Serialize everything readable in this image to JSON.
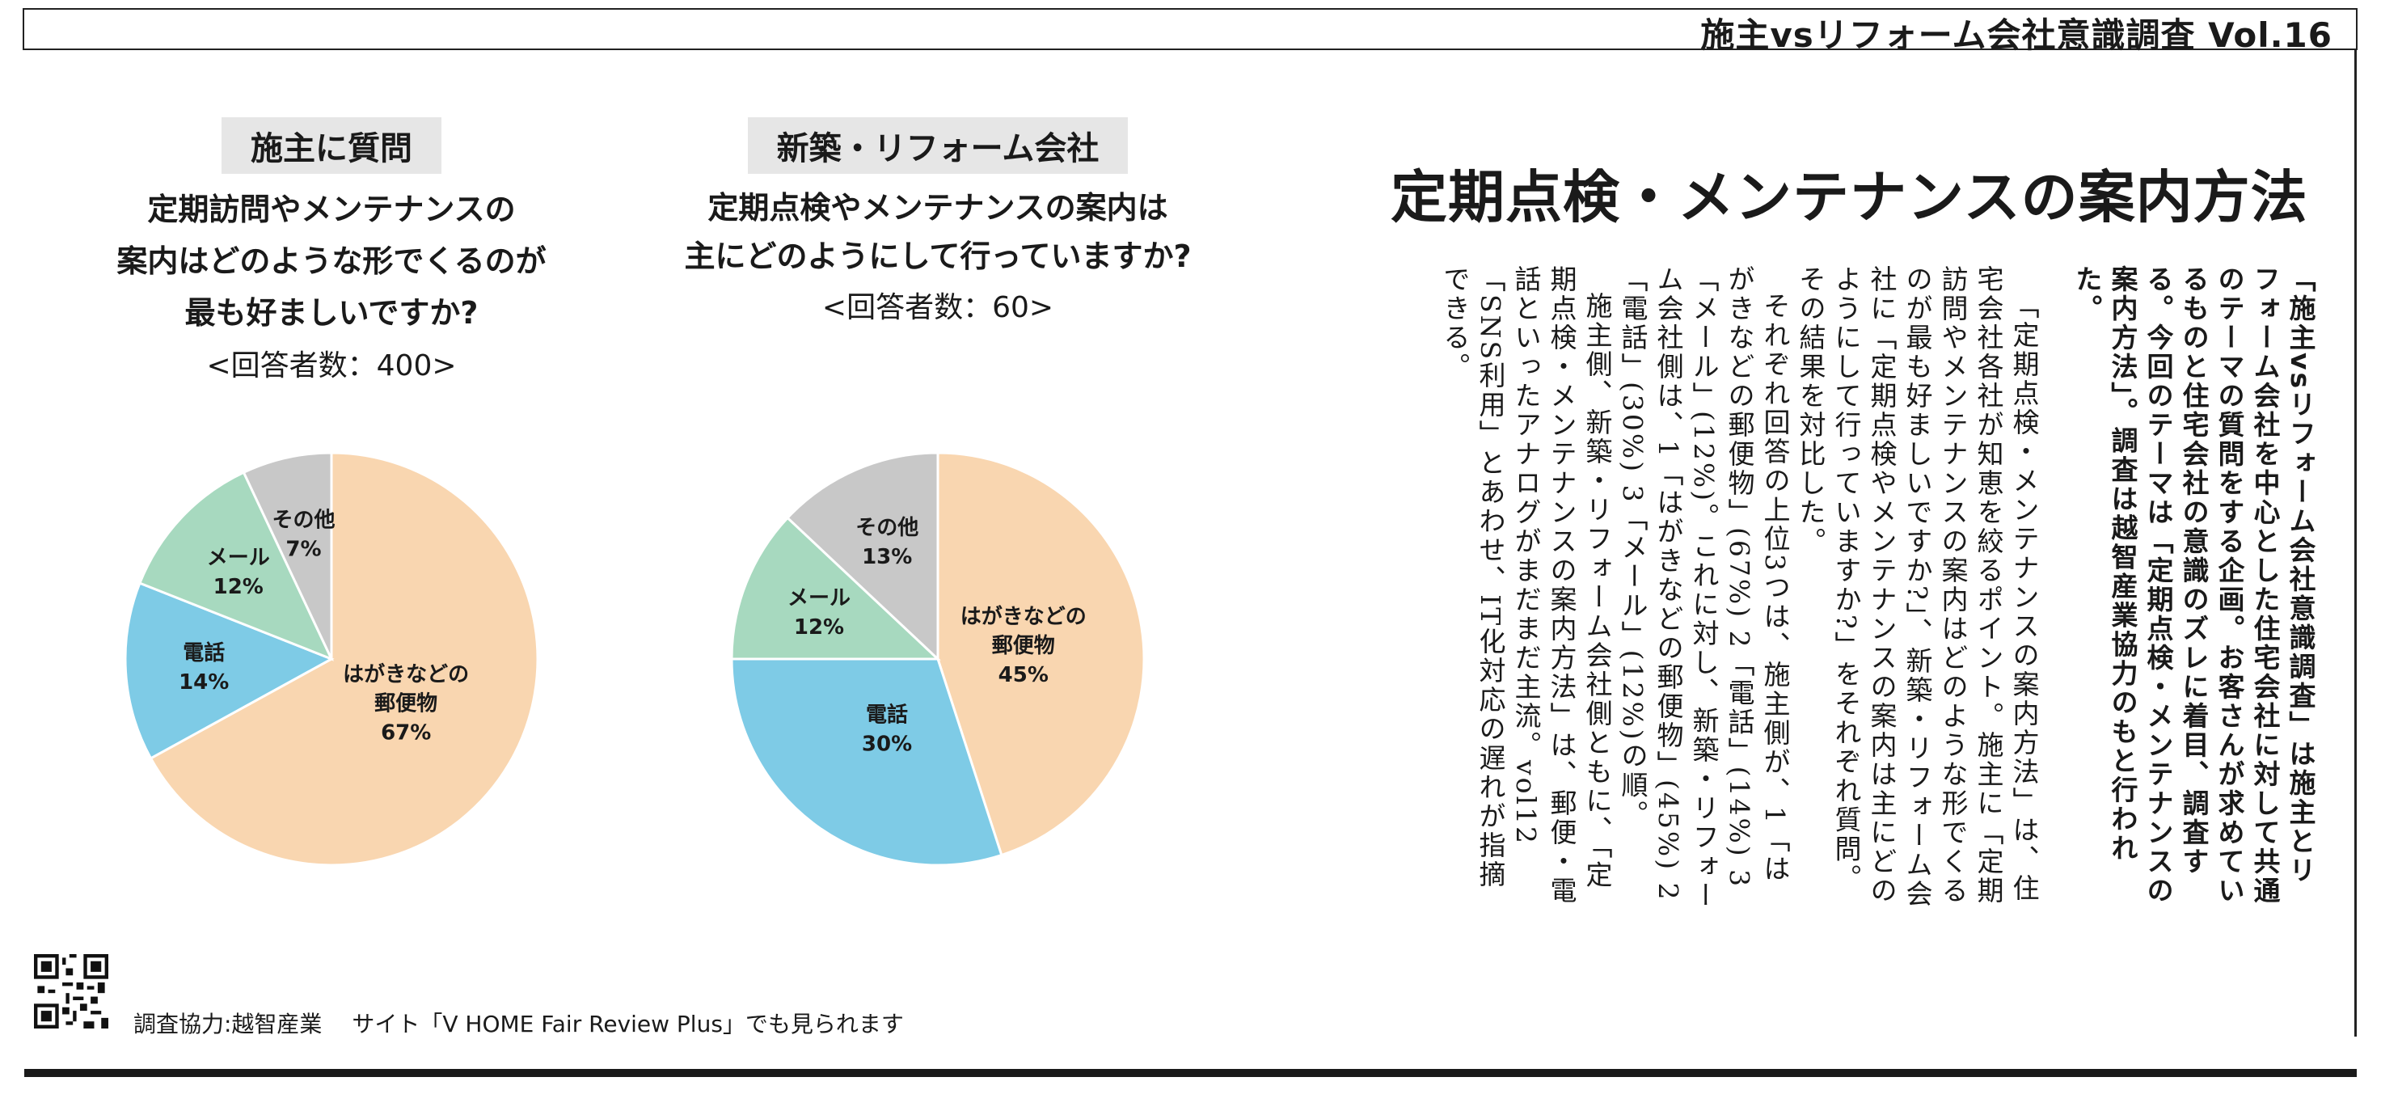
{
  "header": {
    "series_title": "施主vsリフォーム会社意識調査 Vol.16"
  },
  "headline": "定期点検・メンテナンスの案内方法",
  "survey_owner": {
    "tag": "施主に質問",
    "question_lines": [
      "定期訪問やメンテナンスの",
      "案内はどのような形でくるのが",
      "最も好ましいですか?"
    ],
    "respondents": "<回答者数：400>"
  },
  "survey_company": {
    "tag": "新築・リフォーム会社",
    "question_lines": [
      "定期点検やメンテナンスの案内は",
      "主にどのようにして行っていますか?"
    ],
    "respondents": "<回答者数：60>"
  },
  "chart_data": [
    {
      "type": "pie",
      "categories": [
        "はがきなどの郵便物",
        "電話",
        "メール",
        "その他"
      ],
      "values": [
        67,
        14,
        12,
        7
      ],
      "labels": [
        "はがきなどの|郵便物|67%",
        "電話|14%",
        "メール|12%",
        "その他|7%"
      ],
      "colors": [
        "#f9d6b0",
        "#7ecbe6",
        "#a7d9bf",
        "#c8c8c8"
      ]
    },
    {
      "type": "pie",
      "categories": [
        "はがきなどの郵便物",
        "電話",
        "メール",
        "その他"
      ],
      "values": [
        45,
        30,
        12,
        13
      ],
      "labels": [
        "はがきなどの|郵便物|45%",
        "電話|30%",
        "メール|12%",
        "その他|13%"
      ],
      "colors": [
        "#f9d6b0",
        "#7ecbe6",
        "#a7d9bf",
        "#c8c8c8"
      ]
    }
  ],
  "article": {
    "lead": "「施主vsリフォーム会社意識調査」は施主とリフォーム会社を中心とした住宅会社に対して共通のテーマの質問をする企画。お客さんが求めているものと住宅会社の意識のズレに着目、調査する。今回のテーマは「定期点検・メンテナンスの案内方法」。調査は越智産業協力のもと行われた。",
    "paragraphs": [
      "「定期点検・メンテナンスの案内方法」は、住宅会社各社が知恵を絞るポイント。施主に「定期訪問やメンテナンスの案内はどのような形でくるのが最も好ましいですか?」、新築・リフォーム会社に「定期点検やメンテナンスの案内は主にどのようにして行っていますか?」をそれぞれ質問。その結果を対比した。",
      "それぞれ回答の上位3つは、施主側が、1「はがきなどの郵便物」(67%) 2「電話」(14%) 3「メール」(12%)。これに対し、新築・リフォーム会社側は、1「はがきなどの郵便物」(45%) 2「電話」(30%) 3「メール」(12%)の順。",
      "施主側、新築・リフォーム会社側ともに、「定期点検・メンテナンスの案内方法」は、郵便・電話といったアナログがまだまだ主流。vol12「SNS利用」とあわせ、IT化対応の遅れが指摘できる。"
    ]
  },
  "footer": {
    "credit": "調査協力:越智産業　 サイト「V HOME Fair Review Plus」でも見られます"
  }
}
